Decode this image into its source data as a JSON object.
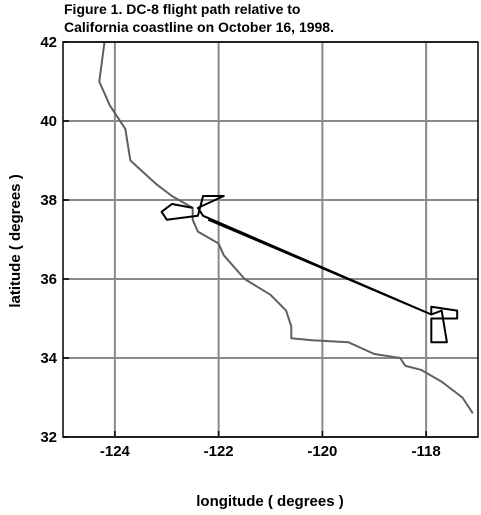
{
  "chart_data": {
    "type": "line",
    "title": [
      "Figure 1.  DC-8 flight path relative to",
      "California coastline on October 16, 1998."
    ],
    "xlabel": "longitude ( degrees )",
    "ylabel": "latitude ( degrees )",
    "xlim": [
      -125,
      -117
    ],
    "ylim": [
      32,
      42
    ],
    "xticks": [
      -124,
      -122,
      -120,
      -118
    ],
    "yticks": [
      32,
      34,
      36,
      38,
      40,
      42
    ],
    "grid": true,
    "series": [
      {
        "color": "#606060",
        "x": [
          -124.2,
          -124.3,
          -124.1,
          -123.8,
          -123.7,
          -123.2,
          -122.9,
          -122.5,
          -122.5,
          -122.4,
          -122.0,
          -121.9,
          -121.5,
          -121.0,
          -120.7,
          -120.6,
          -120.6,
          -120.2,
          -119.5,
          -119.0,
          -118.5,
          -118.4,
          -118.1,
          -117.7,
          -117.3,
          -117.1
        ],
        "values": [
          42.0,
          41.0,
          40.4,
          39.8,
          39.0,
          38.4,
          38.1,
          37.8,
          37.5,
          37.2,
          36.9,
          36.6,
          36.0,
          35.6,
          35.2,
          34.8,
          34.5,
          34.45,
          34.4,
          34.1,
          34.0,
          33.8,
          33.7,
          33.4,
          33.0,
          32.6
        ]
      },
      {
        "color": "#000000",
        "x": [
          -122.5,
          -122.9,
          -123.1,
          -123.0,
          -122.4,
          -122.3,
          -121.9,
          -122.4,
          -122.3,
          -117.9,
          -117.9,
          -117.4,
          -117.4,
          -117.9,
          -117.9,
          -117.6,
          -117.7,
          -117.9,
          -122.2
        ],
        "values": [
          37.8,
          37.9,
          37.7,
          37.5,
          37.6,
          38.1,
          38.1,
          37.8,
          37.6,
          35.1,
          35.3,
          35.2,
          35.0,
          35.0,
          34.4,
          34.4,
          35.2,
          35.1,
          37.5
        ]
      }
    ]
  }
}
